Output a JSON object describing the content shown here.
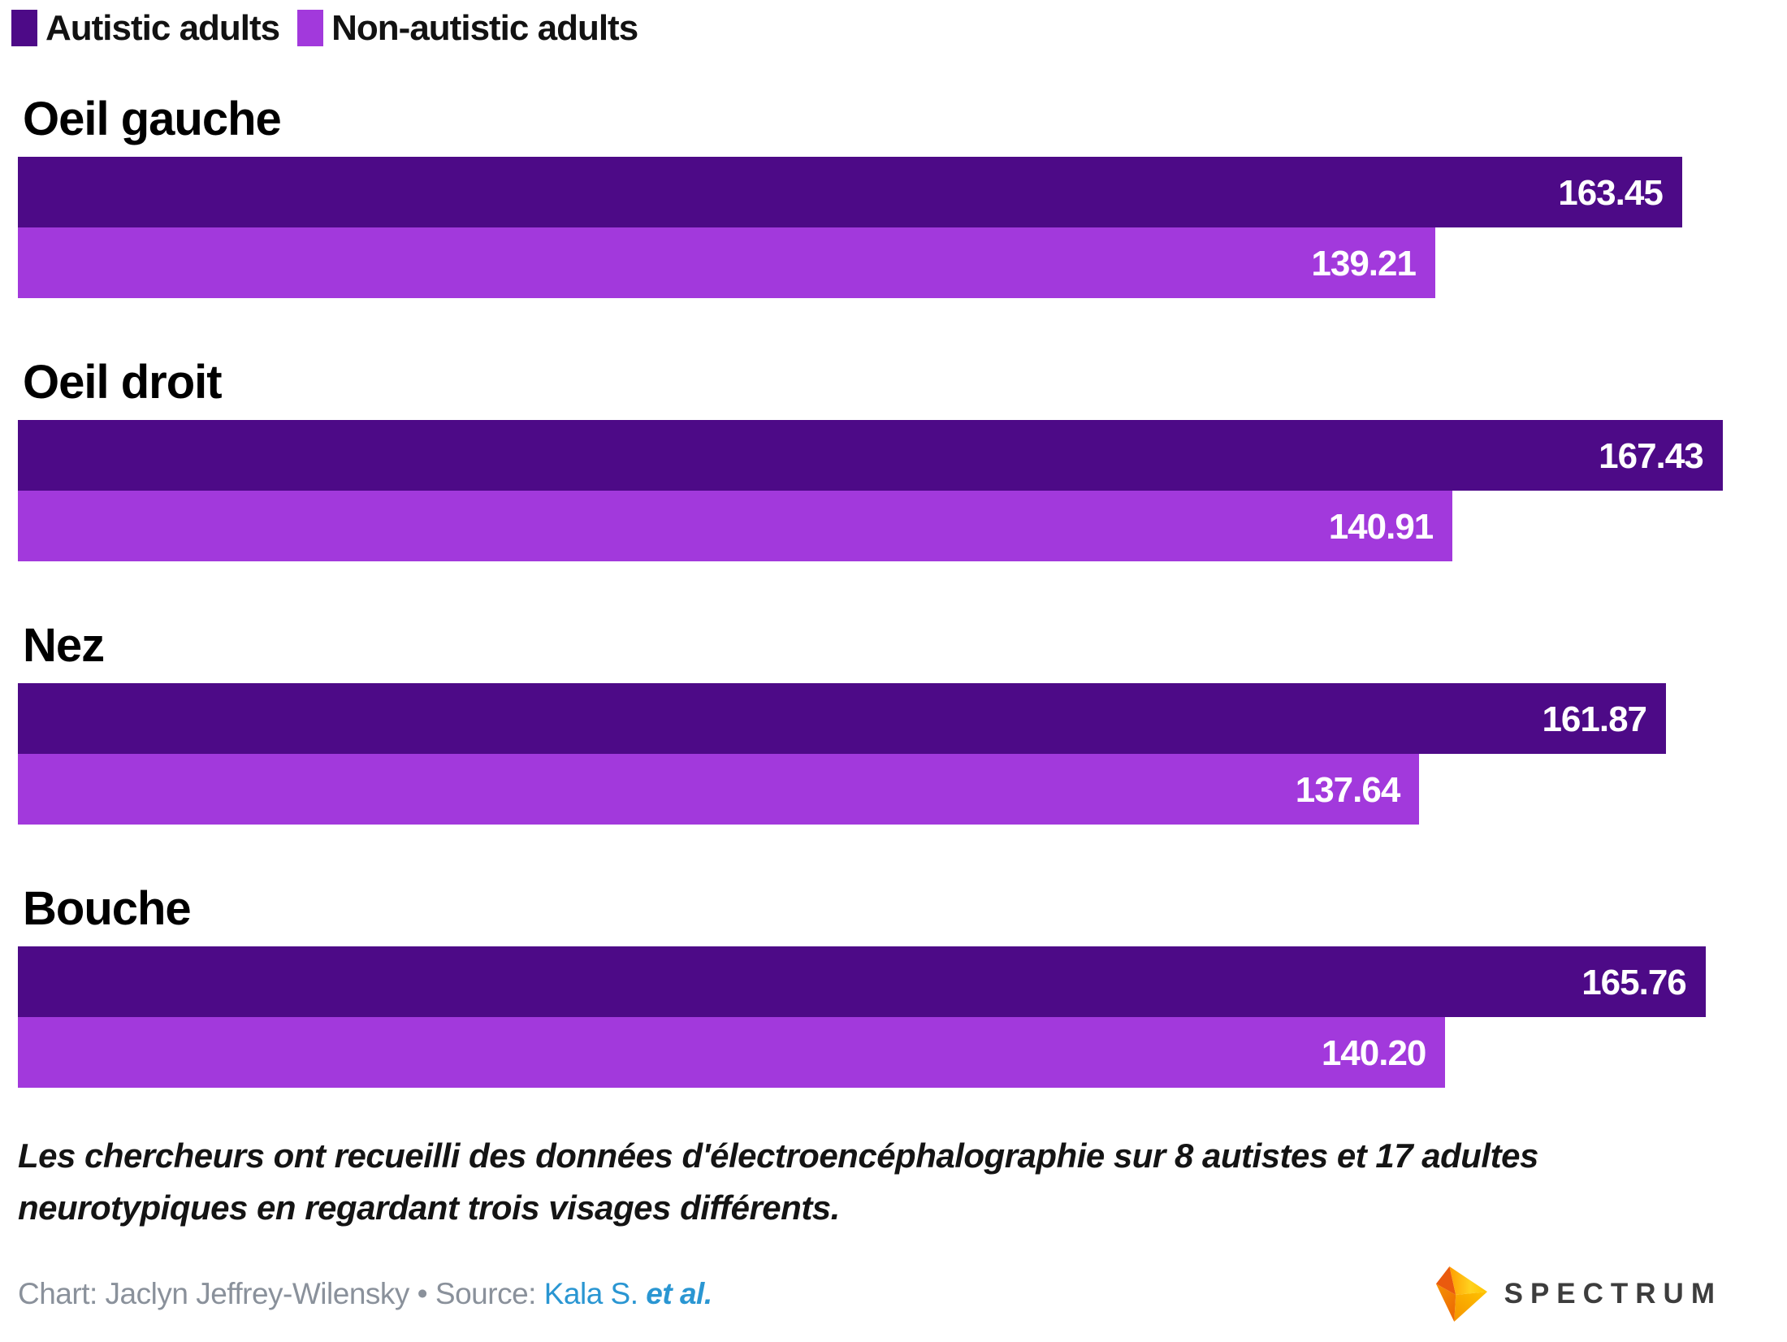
{
  "legend": {
    "items": [
      {
        "label": "Autistic adults",
        "color": "#4d0a87"
      },
      {
        "label": "Non-autistic adults",
        "color": "#a239dc"
      }
    ]
  },
  "chart_data": {
    "type": "bar",
    "orientation": "horizontal",
    "categories": [
      "Oeil gauche",
      "Oeil droit",
      "Nez",
      "Bouche"
    ],
    "series": [
      {
        "name": "Autistic adults",
        "color": "#4d0a87",
        "values": [
          163.45,
          167.43,
          161.87,
          165.76
        ]
      },
      {
        "name": "Non-autistic adults",
        "color": "#a239dc",
        "values": [
          139.21,
          140.91,
          137.64,
          140.2
        ]
      }
    ],
    "value_labels": [
      [
        "163.45",
        "139.21"
      ],
      [
        "167.43",
        "140.91"
      ],
      [
        "161.87",
        "137.64"
      ],
      [
        "165.76",
        "140.20"
      ]
    ],
    "xmin": 0,
    "xmax": 172,
    "grid": false,
    "legend_position": "top",
    "value_label_color": "#ffffff"
  },
  "caption": "Les chercheurs ont recueilli des données d'électroencéphalographie sur 8 autistes et 17 adultes neurotypiques en regardant trois visages différents.",
  "credit": {
    "chart_prefix": "Chart: Jaclyn Jeffrey-Wilensky",
    "separator": " • ",
    "source_prefix": "Source: ",
    "source_link_name": "Kala S. ",
    "source_link_etal": "et al.",
    "link_color": "#2a96d2",
    "text_color": "#8a919b"
  },
  "logo": {
    "wordmark": "SPECTRUM",
    "gem_colors": {
      "top": "#ffd21f",
      "right": "#ffaa00",
      "left": "#ea5a0e",
      "bottom": "#ed6a05"
    }
  }
}
